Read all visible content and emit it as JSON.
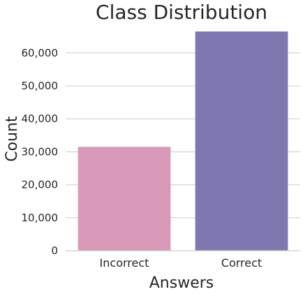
{
  "chart_data": {
    "type": "bar",
    "title": "Class Distribution",
    "xlabel": "Answers",
    "ylabel": "Count",
    "categories": [
      "Incorrect",
      "Correct"
    ],
    "values": [
      31500,
      66500
    ],
    "ylim": [
      0,
      68000
    ],
    "yticks": [
      0,
      10000,
      20000,
      30000,
      40000,
      50000,
      60000
    ],
    "ytick_labels": [
      "0",
      "10,000",
      "20,000",
      "30,000",
      "40,000",
      "50,000",
      "60,000"
    ],
    "colors": [
      "#d899b9",
      "#7e77b0"
    ],
    "grid": true,
    "legend": "none"
  }
}
